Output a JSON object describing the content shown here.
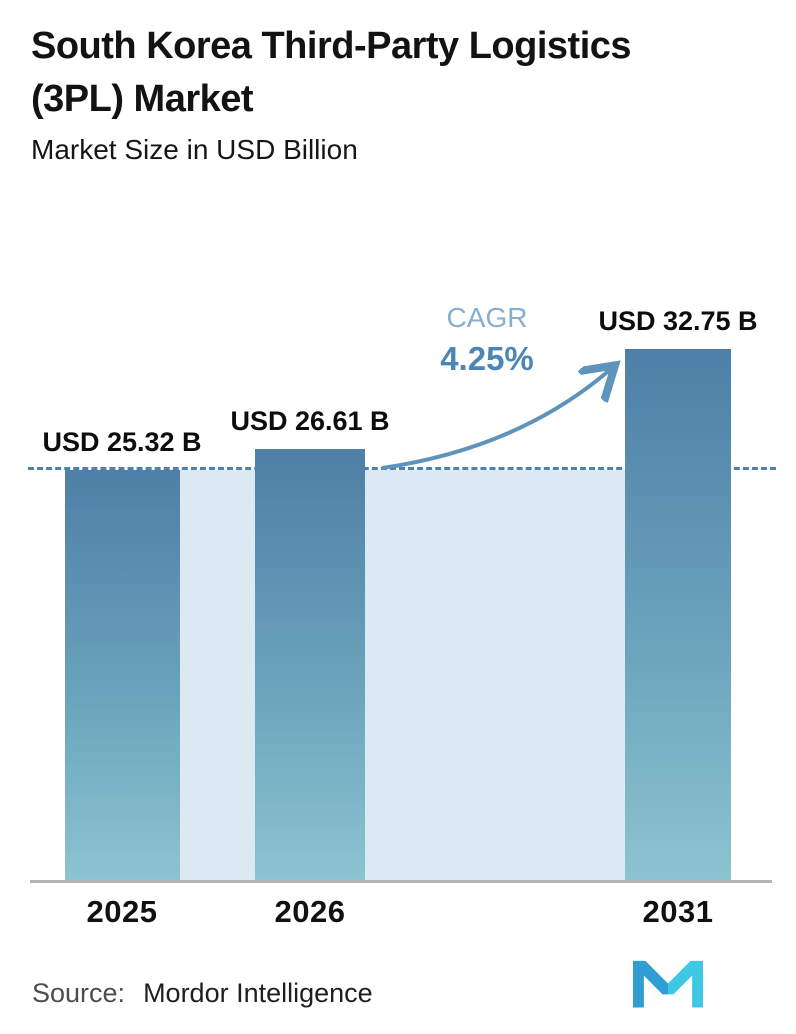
{
  "header": {
    "title": "South Korea Third-Party Logistics (3PL) Market",
    "subtitle": "Market Size in USD Billion"
  },
  "chart_data": {
    "type": "bar",
    "title": "South Korea Third-Party Logistics (3PL) Market",
    "subtitle": "Market Size in USD Billion",
    "unit": "USD Billion",
    "categories": [
      "2025",
      "2026",
      "2031"
    ],
    "values": [
      25.32,
      26.61,
      32.75
    ],
    "value_labels": [
      "USD 25.32 B",
      "USD 26.61 B",
      "USD 32.75 B"
    ],
    "ylim": [
      0,
      37
    ],
    "reference_line_value": 25.32,
    "grid": false,
    "legend": "none",
    "annotations": {
      "cagr_label": "CAGR",
      "cagr_value": "4.25%",
      "arrow": "from 2026 bar top toward 2031 bar top"
    },
    "colors": {
      "bar_gradient_top": "#4e7fa7",
      "bar_gradient_bottom": "#8cc4d1",
      "background_band": "#dde9f2",
      "dashed_reference_line": "#4f82aa",
      "cagr_label_text": "#86afcf",
      "cagr_value_text": "#4c86b6",
      "arrow_stroke": "#5e93bc",
      "axis_line": "#b3b3b3"
    }
  },
  "footer": {
    "source_label": "Source:",
    "source_value": "Mordor Intelligence",
    "logo": "mordor-intelligence-logo",
    "logo_colors": {
      "left": "#2e9ed3",
      "right": "#3ec8e4"
    }
  }
}
